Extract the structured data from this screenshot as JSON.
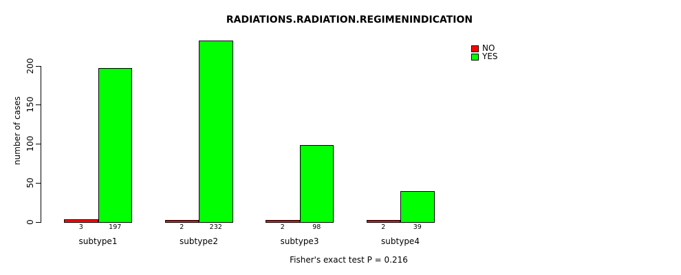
{
  "chart_data": {
    "type": "bar",
    "title": "RADIATIONS.RADIATION.REGIMENINDICATION",
    "ylabel": "number of cases",
    "xlabel": "",
    "categories": [
      "subtype1",
      "subtype2",
      "subtype3",
      "subtype4"
    ],
    "series": [
      {
        "name": "NO",
        "color": "#ff0000",
        "values": [
          3,
          2,
          2,
          2
        ]
      },
      {
        "name": "YES",
        "color": "#00ff00",
        "values": [
          197,
          232,
          98,
          39
        ]
      }
    ],
    "yticks": [
      0,
      50,
      100,
      150,
      200
    ],
    "ylim": [
      0,
      232
    ],
    "grid": false,
    "bar_value_labels_shown": true,
    "legend_position": "top-right",
    "annotation": "Fisher's exact test P = 0.216",
    "colors": {
      "axis": "#000000",
      "text": "#000000",
      "background": "#ffffff",
      "bar_border": "#000000"
    }
  }
}
